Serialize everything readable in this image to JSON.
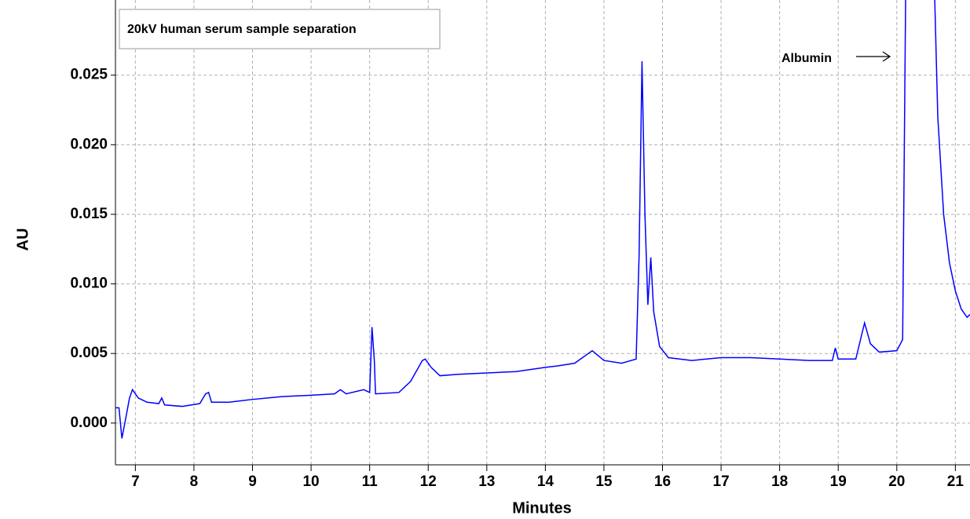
{
  "chart_data": {
    "type": "line",
    "title": "20kV human serum sample separation",
    "x_label": "Minutes",
    "y_label": "AU",
    "annotation": "Albumin",
    "x": [
      6.66,
      6.72,
      6.77,
      6.82,
      6.9,
      6.95,
      7.05,
      7.2,
      7.4,
      7.45,
      7.5,
      7.8,
      8.1,
      8.2,
      8.25,
      8.3,
      8.6,
      9.0,
      9.5,
      10.0,
      10.4,
      10.5,
      10.6,
      10.9,
      11.0,
      11.04,
      11.08,
      11.1,
      11.5,
      11.7,
      11.9,
      11.95,
      12.05,
      12.2,
      12.5,
      13.0,
      13.5,
      14.0,
      14.2,
      14.5,
      14.8,
      15.0,
      15.3,
      15.55,
      15.6,
      15.65,
      15.7,
      15.75,
      15.8,
      15.85,
      15.95,
      16.1,
      16.5,
      17.0,
      17.5,
      18.0,
      18.5,
      18.9,
      18.95,
      19.0,
      19.3,
      19.45,
      19.55,
      19.7,
      20.0,
      20.1,
      20.16,
      20.62,
      20.7,
      20.8,
      20.9,
      21.0,
      21.1,
      21.2,
      21.25
    ],
    "series": [
      {
        "name": "AU",
        "color": "#0000ff",
        "values": [
          0.0011,
          0.0011,
          -0.0011,
          0.0,
          0.0018,
          0.0024,
          0.0018,
          0.0015,
          0.0014,
          0.0018,
          0.0013,
          0.0012,
          0.0014,
          0.0021,
          0.0022,
          0.0015,
          0.0015,
          0.0017,
          0.0019,
          0.002,
          0.0021,
          0.0024,
          0.0021,
          0.0024,
          0.0022,
          0.0069,
          0.0045,
          0.0021,
          0.0022,
          0.003,
          0.0045,
          0.0046,
          0.004,
          0.0034,
          0.0035,
          0.0036,
          0.0037,
          0.004,
          0.0041,
          0.0043,
          0.0052,
          0.0045,
          0.0043,
          0.0046,
          0.012,
          0.026,
          0.015,
          0.0085,
          0.0119,
          0.008,
          0.0055,
          0.0047,
          0.0045,
          0.0047,
          0.0047,
          0.0046,
          0.0045,
          0.0045,
          0.0054,
          0.0046,
          0.0046,
          0.0072,
          0.0057,
          0.0051,
          0.0052,
          0.006,
          0.035,
          0.035,
          0.022,
          0.015,
          0.0115,
          0.0095,
          0.0082,
          0.0076,
          0.0078
        ]
      }
    ],
    "xlim": [
      6.66,
      21.25
    ],
    "ylim": [
      -0.003,
      0.0304
    ],
    "xticks": [
      7,
      8,
      9,
      10,
      11,
      12,
      13,
      14,
      15,
      16,
      17,
      18,
      19,
      20,
      21
    ],
    "yticks": [
      {
        "value": 0,
        "label": "0.000"
      },
      {
        "value": 0.005,
        "label": "0.005"
      },
      {
        "value": 0.01,
        "label": "0.010"
      },
      {
        "value": 0.015,
        "label": "0.015"
      },
      {
        "value": 0.02,
        "label": "0.020"
      },
      {
        "value": 0.025,
        "label": "0.025"
      }
    ],
    "grid": true
  }
}
